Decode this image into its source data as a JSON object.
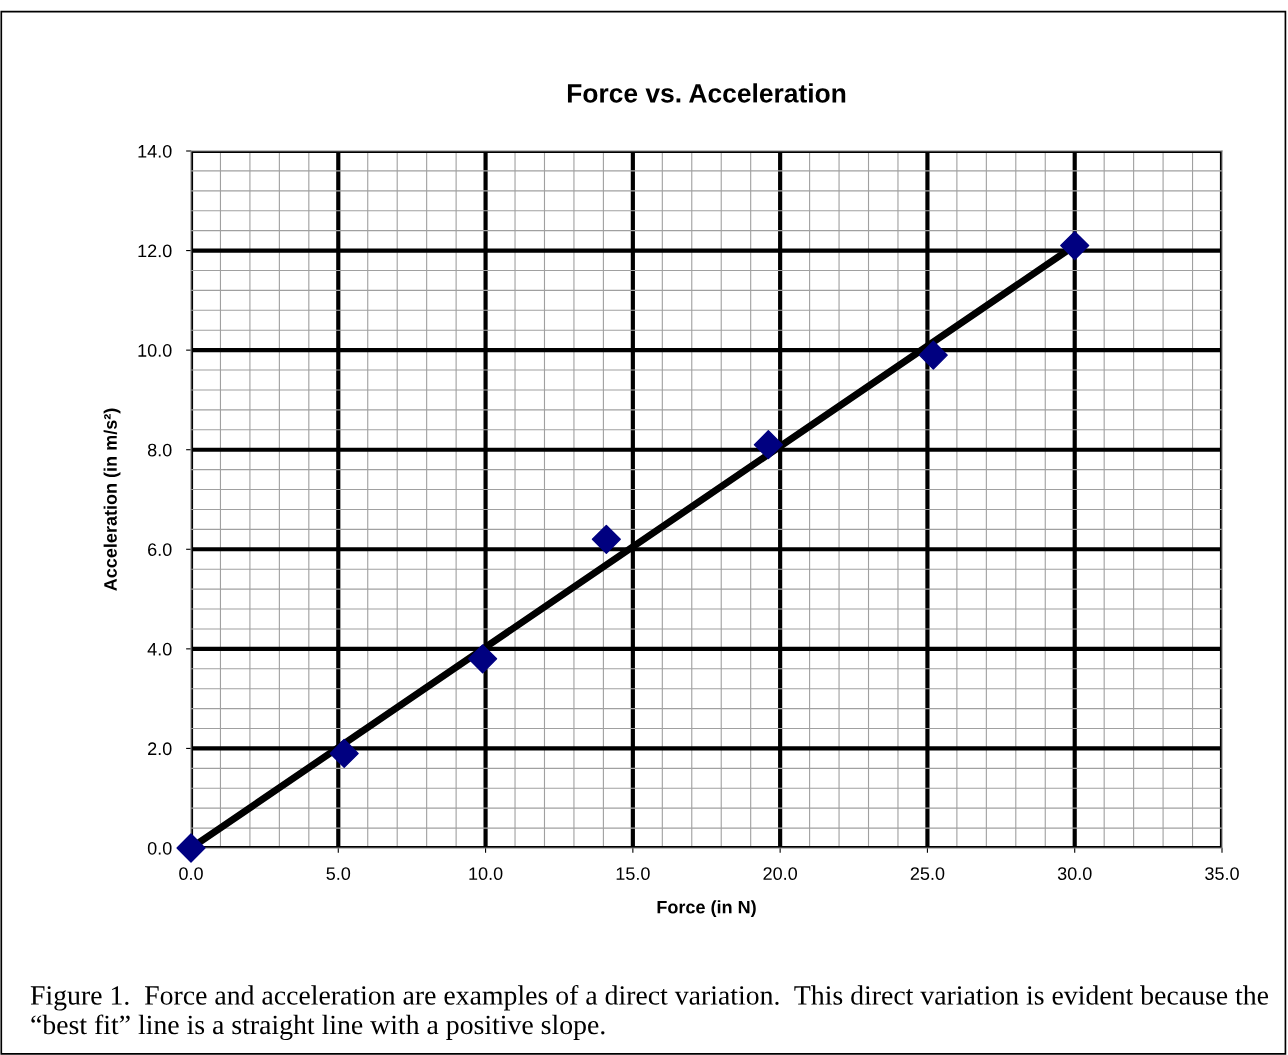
{
  "chart_data": {
    "type": "scatter",
    "title": "Force vs. Acceleration",
    "xlabel": "Force (in N)",
    "ylabel": "Acceleration (in m/s²)",
    "xlim": [
      0,
      35
    ],
    "ylim": [
      0,
      14
    ],
    "xticks": [
      {
        "value": 0,
        "label": "0.0"
      },
      {
        "value": 5,
        "label": "5.0"
      },
      {
        "value": 10,
        "label": "10.0"
      },
      {
        "value": 15,
        "label": "15.0"
      },
      {
        "value": 20,
        "label": "20.0"
      },
      {
        "value": 25,
        "label": "25.0"
      },
      {
        "value": 30,
        "label": "30.0"
      },
      {
        "value": 35,
        "label": "35.0"
      }
    ],
    "yticks": [
      {
        "value": 0,
        "label": "0.0"
      },
      {
        "value": 2,
        "label": "2.0"
      },
      {
        "value": 4,
        "label": "4.0"
      },
      {
        "value": 6,
        "label": "6.0"
      },
      {
        "value": 8,
        "label": "8.0"
      },
      {
        "value": 10,
        "label": "10.0"
      },
      {
        "value": 12,
        "label": "12.0"
      },
      {
        "value": 14,
        "label": "14.0"
      }
    ],
    "grid": true,
    "legend": false,
    "series": [
      {
        "color": "#000080",
        "marker": "diamond",
        "x": [
          0,
          5.2,
          9.9,
          14.1,
          19.6,
          25.2,
          30.0
        ],
        "values": [
          0,
          1.9,
          3.8,
          6.2,
          8.1,
          9.9,
          12.1
        ]
      },
      {
        "type": "line",
        "color": "#000000",
        "line_style": "solid",
        "marker": "none",
        "x": [
          0,
          30.0
        ],
        "values": [
          0,
          12.1
        ]
      }
    ],
    "annotations": [
      "Figure 1.  Force and acceleration are examples of a direct variation.  This direct variation is evident because the “best fit” line is a straight line with a positive slope."
    ]
  }
}
